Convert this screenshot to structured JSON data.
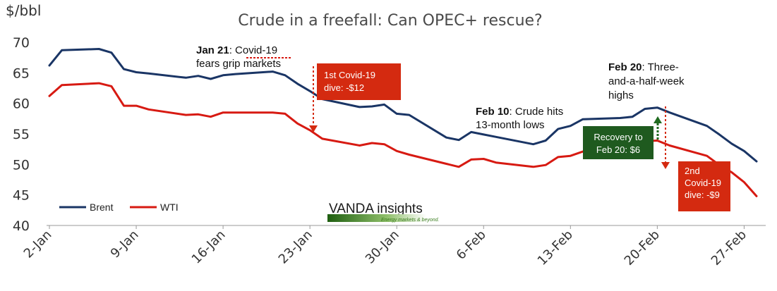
{
  "chart_data": {
    "type": "line",
    "title": "Crude in a freefall: Can OPEC+ rescue?",
    "ylabel": "$/bbl",
    "ylim": [
      40,
      70
    ],
    "yticks": [
      40,
      45,
      50,
      55,
      60,
      65,
      70
    ],
    "xticks": [
      "2-Jan",
      "9-Jan",
      "16-Jan",
      "23-Jan",
      "30-Jan",
      "6-Feb",
      "13-Feb",
      "20-Feb",
      "27-Feb"
    ],
    "x": [
      "2020-01-02",
      "2020-01-03",
      "2020-01-06",
      "2020-01-07",
      "2020-01-08",
      "2020-01-09",
      "2020-01-10",
      "2020-01-13",
      "2020-01-14",
      "2020-01-15",
      "2020-01-16",
      "2020-01-17",
      "2020-01-20",
      "2020-01-21",
      "2020-01-22",
      "2020-01-23",
      "2020-01-24",
      "2020-01-27",
      "2020-01-28",
      "2020-01-29",
      "2020-01-30",
      "2020-01-31",
      "2020-02-03",
      "2020-02-04",
      "2020-02-05",
      "2020-02-06",
      "2020-02-07",
      "2020-02-10",
      "2020-02-11",
      "2020-02-12",
      "2020-02-13",
      "2020-02-14",
      "2020-02-17",
      "2020-02-18",
      "2020-02-19",
      "2020-02-20",
      "2020-02-21",
      "2020-02-24",
      "2020-02-25",
      "2020-02-26",
      "2020-02-27",
      "2020-02-28"
    ],
    "series": [
      {
        "name": "Brent",
        "color": "#1a3565",
        "values": [
          66.2,
          68.7,
          68.9,
          68.3,
          65.6,
          65.1,
          64.9,
          64.2,
          64.5,
          64.0,
          64.6,
          64.8,
          65.2,
          64.6,
          63.2,
          62.0,
          60.7,
          59.4,
          59.5,
          59.8,
          58.3,
          58.1,
          54.4,
          54.0,
          55.3,
          54.9,
          54.5,
          53.3,
          53.9,
          55.8,
          56.3,
          57.4,
          57.6,
          57.8,
          59.1,
          59.3,
          58.5,
          56.3,
          54.9,
          53.4,
          52.2,
          50.5
        ]
      },
      {
        "name": "WTI",
        "color": "#d71a12",
        "values": [
          61.2,
          63.0,
          63.3,
          62.8,
          59.6,
          59.6,
          59.0,
          58.1,
          58.2,
          57.8,
          58.5,
          58.5,
          58.5,
          58.3,
          56.7,
          55.6,
          54.2,
          53.1,
          53.5,
          53.3,
          52.2,
          51.6,
          50.1,
          49.6,
          50.8,
          50.9,
          50.3,
          49.6,
          49.9,
          51.2,
          51.4,
          52.1,
          52.6,
          53.3,
          53.8,
          53.9,
          53.1,
          51.4,
          49.9,
          48.7,
          47.1,
          44.8
        ]
      }
    ],
    "legend": "bottom-left",
    "grid": false
  },
  "annotations": {
    "jan21": {
      "bold": "Jan 21",
      "line1_rest": ": Covid-19",
      "line2": "fears grip markets"
    },
    "feb10": {
      "bold": "Feb 10",
      "line1_rest": ": Crude hits",
      "line2": "13-month lows"
    },
    "feb20": {
      "bold": "Feb 20",
      "line1_rest": ": Three-",
      "line2": "and-a-half-week",
      "line3": "highs"
    },
    "dive1": {
      "line1": "1st Covid-19",
      "line2": "dive: -$12",
      "color": "#d42a10"
    },
    "recovery": {
      "line1": "Recovery to",
      "line2": "Feb 20: $6",
      "color": "#1f5a1f"
    },
    "dive2": {
      "line1": "2nd",
      "line2": "Covid-19",
      "line3": "dive: -$9",
      "color": "#d42a10"
    }
  },
  "logo": {
    "name": "VANDA insights",
    "tagline": "Energy markets & beyond."
  }
}
